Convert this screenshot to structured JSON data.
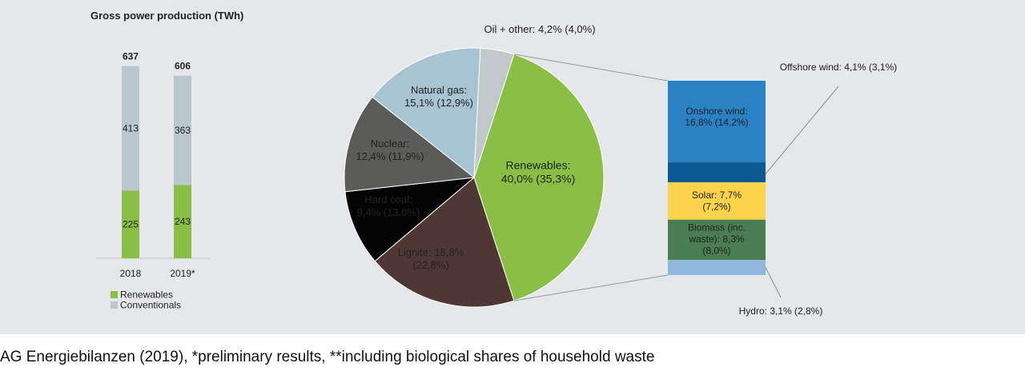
{
  "chart_data": [
    {
      "type": "bar",
      "stacked": true,
      "title": "Gross power production (TWh)",
      "categories": [
        "2018",
        "2019*"
      ],
      "totals": [
        637,
        606
      ],
      "series": [
        {
          "name": "Renewables",
          "values": [
            225,
            243
          ],
          "color": "#8abf45"
        },
        {
          "name": "Conventionals",
          "values": [
            413,
            363
          ],
          "color": "#b9c7cf"
        }
      ],
      "legend_position": "bottom-left"
    },
    {
      "type": "pie",
      "slices": [
        {
          "name": "Renewables",
          "label": [
            "Renewables:",
            "40,0% (35,3%)"
          ],
          "value": 40.0,
          "color": "#8abf45"
        },
        {
          "name": "Lignite",
          "label": [
            "Lignite: 18,8%",
            "(22,8%)"
          ],
          "value": 18.8,
          "color": "#4f3833"
        },
        {
          "name": "Hard coal",
          "label": [
            "Hard coal:",
            "9,4% (13,0%)"
          ],
          "value": 9.4,
          "color": "#050505"
        },
        {
          "name": "Nuclear",
          "label": [
            "Nuclear:",
            "12,4% (11,9%)"
          ],
          "value": 12.4,
          "color": "#5b5b59"
        },
        {
          "name": "Natural gas",
          "label": [
            "Natural gas:",
            "15,1% (12,9%)"
          ],
          "value": 15.1,
          "color": "#a8c3d2"
        },
        {
          "name": "Oil + other",
          "label": [
            "Oil + other: 4,2% (4,0%)"
          ],
          "value": 4.2,
          "color": "#c1c8cc"
        }
      ],
      "breakdown": {
        "of": "Renewables",
        "segments": [
          {
            "name": "Onshore wind",
            "label": [
              "Onshore wind:",
              "16,8% (14,2%)"
            ],
            "value": 16.8,
            "color": "#2a82c4"
          },
          {
            "name": "Offshore wind",
            "label": [
              "Offshore wind: 4,1% (3,1%)"
            ],
            "value": 4.1,
            "color": "#0a5993"
          },
          {
            "name": "Solar",
            "label": [
              "Solar: 7,7%",
              "(7,2%)"
            ],
            "value": 7.7,
            "color": "#fbd44c"
          },
          {
            "name": "Biomass",
            "label": [
              "Biomass (inc.",
              "waste): 8,3%",
              "(8,0%)"
            ],
            "value": 8.3,
            "color": "#4b7d52"
          },
          {
            "name": "Hydro",
            "label": [
              "Hydro: 3,1% (2,8%)"
            ],
            "value": 3.1,
            "color": "#8fb8da"
          }
        ]
      }
    }
  ],
  "footer": {
    "source": "AG Energiebilanzen (2019), *preliminary results, **including biological shares of household waste"
  }
}
